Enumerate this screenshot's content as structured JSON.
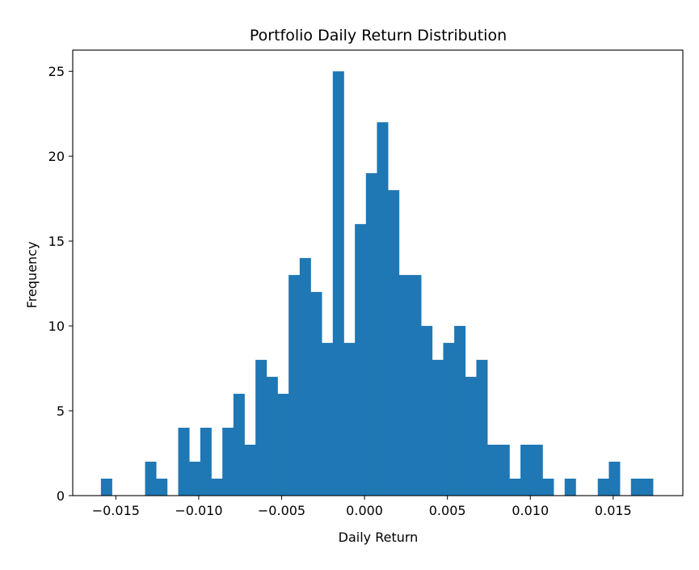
{
  "chart_data": {
    "type": "bar",
    "title": "Portfolio Daily Return Distribution",
    "xlabel": "Daily Return",
    "ylabel": "Frequency",
    "xlim": [
      -0.0176,
      0.0192
    ],
    "ylim": [
      0,
      26.25
    ],
    "grid": false,
    "bar_color": "#1f77b4",
    "bin_start": -0.0159,
    "bin_width": 0.000666,
    "values": [
      1,
      0,
      0,
      0,
      2,
      1,
      0,
      4,
      2,
      4,
      1,
      4,
      6,
      3,
      8,
      7,
      6,
      13,
      14,
      12,
      9,
      25,
      9,
      16,
      19,
      22,
      18,
      13,
      13,
      10,
      8,
      9,
      10,
      7,
      8,
      3,
      3,
      1,
      3,
      3,
      1,
      0,
      1,
      0,
      0,
      1,
      2,
      0,
      1,
      1
    ],
    "x_ticks": [
      -0.015,
      -0.01,
      -0.005,
      0.0,
      0.005,
      0.01,
      0.015
    ],
    "x_tick_labels": [
      "−0.015",
      "−0.010",
      "−0.005",
      "0.000",
      "0.005",
      "0.010",
      "0.015"
    ],
    "y_ticks": [
      0,
      5,
      10,
      15,
      20,
      25
    ],
    "y_tick_labels": [
      "0",
      "5",
      "10",
      "15",
      "20",
      "25"
    ]
  }
}
